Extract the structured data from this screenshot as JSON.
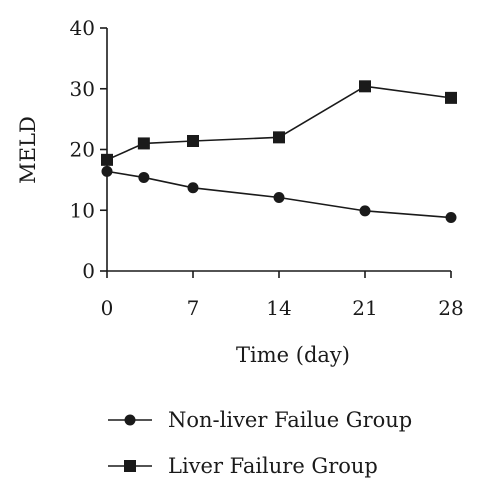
{
  "chart_data": {
    "type": "line",
    "title": "",
    "xlabel": "Time (day)",
    "ylabel": "MELD",
    "x": [
      0,
      3,
      7,
      14,
      21,
      28
    ],
    "xticks": [
      0,
      7,
      14,
      21,
      28
    ],
    "yticks": [
      0,
      10,
      20,
      30,
      40
    ],
    "xlim": [
      0,
      28
    ],
    "ylim": [
      0,
      40
    ],
    "grid": false,
    "legend_position": "bottom",
    "series": [
      {
        "name": "Non-liver Failue Group",
        "marker": "circle",
        "color": "#1a1a1a",
        "values": [
          16.4,
          15.4,
          13.7,
          12.1,
          9.9,
          8.8
        ]
      },
      {
        "name": "Liver Failure Group",
        "marker": "square",
        "color": "#1a1a1a",
        "values": [
          18.3,
          21.0,
          21.4,
          22.0,
          30.4,
          28.5
        ]
      }
    ]
  }
}
